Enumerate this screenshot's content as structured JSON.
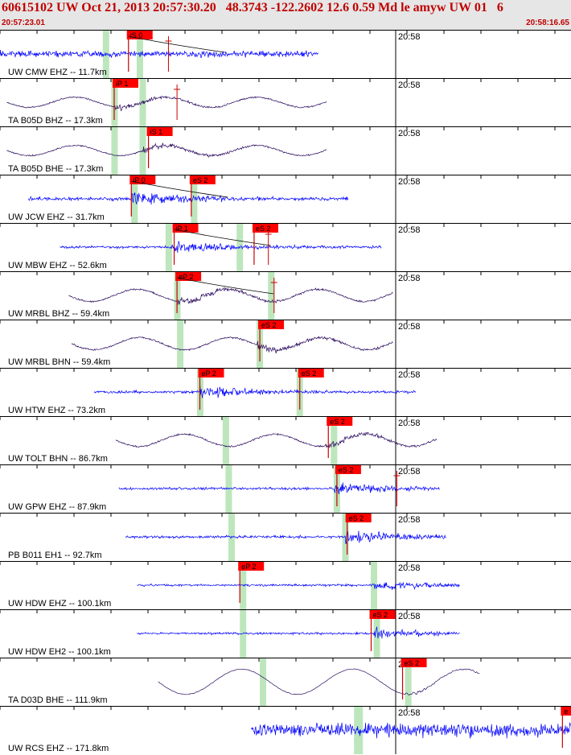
{
  "header": {
    "title": "60615102 UW Oct 21, 2013 20:57:30.20   48.3743 -122.2602 12.6 0.59 Md le amyw UW 01   6",
    "start_time": "20:57:23.01",
    "end_time": "20:58:16.65"
  },
  "tick_label": "20:58",
  "colors": {
    "blue_trace": "#0000ff",
    "dark_trace": "#2a0a5e",
    "pick_box": "#ff0000",
    "pick_line": "#cc0000",
    "window_band": "#bde6bd",
    "header_bg": "#e6e6e6",
    "header_text": "#c00000"
  },
  "traces": [
    {
      "label": "UW CMW EHZ -- 11.7km",
      "color": "blue",
      "start": 0.0,
      "end": 0.558,
      "amp": 0.35,
      "onset": 0.22,
      "kind": "noise",
      "green": [
        0.18,
        0.245
      ],
      "picks": [
        {
          "label": "iS 0",
          "t": 0.225
        }
      ],
      "marks": [
        0.295
      ],
      "arc": true
    },
    {
      "label": "TA B05D BHZ -- 17.3km",
      "color": "dark",
      "start": 0.012,
      "end": 0.572,
      "amp": 0.25,
      "onset": 0.2,
      "kind": "wave",
      "green": [
        0.195,
        0.25
      ],
      "picks": [
        {
          "label": "iP 1",
          "t": 0.2
        }
      ],
      "marks": [
        0.31
      ],
      "arc": false
    },
    {
      "label": "TA B05D BHE -- 17.3km",
      "color": "dark",
      "start": 0.012,
      "end": 0.572,
      "amp": 0.25,
      "onset": 0.25,
      "kind": "wave",
      "green": [
        0.195,
        0.25
      ],
      "picks": [
        {
          "label": "iS 1",
          "t": 0.26
        }
      ],
      "marks": [],
      "arc": false
    },
    {
      "label": "UW JCW EHZ -- 31.7km",
      "color": "blue",
      "start": 0.05,
      "end": 0.61,
      "amp": 0.6,
      "onset": 0.23,
      "kind": "burst",
      "green": [
        0.23,
        0.34
      ],
      "picks": [
        {
          "label": "iP 0",
          "t": 0.23
        },
        {
          "label": "eS 2",
          "t": 0.335
        }
      ],
      "marks": [],
      "arc": true
    },
    {
      "label": "UW MBW EHZ -- 52.6km",
      "color": "blue",
      "start": 0.105,
      "end": 0.668,
      "amp": 0.45,
      "onset": 0.3,
      "kind": "burst",
      "green": [
        0.29,
        0.42
      ],
      "picks": [
        {
          "label": "iP 1",
          "t": 0.305
        },
        {
          "label": "eS 2",
          "t": 0.445
        }
      ],
      "marks": [
        0.47
      ],
      "arc": true
    },
    {
      "label": "UW MRBL BHZ -- 59.4km",
      "color": "dark",
      "start": 0.12,
      "end": 0.688,
      "amp": 0.3,
      "onset": 0.31,
      "kind": "wave",
      "green": [
        0.305,
        0.475
      ],
      "picks": [
        {
          "label": "eP 2",
          "t": 0.31
        }
      ],
      "marks": [
        0.48
      ],
      "arc": true
    },
    {
      "label": "UW MRBL BHN -- 59.4km",
      "color": "dark",
      "start": 0.125,
      "end": 0.688,
      "amp": 0.3,
      "onset": 0.45,
      "kind": "wave",
      "green": [
        0.31,
        0.455
      ],
      "picks": [
        {
          "label": "eS 2",
          "t": 0.455
        }
      ],
      "marks": [],
      "arc": false
    },
    {
      "label": "UW HTW EHZ -- 73.2km",
      "color": "blue",
      "start": 0.165,
      "end": 0.728,
      "amp": 0.5,
      "onset": 0.35,
      "kind": "burst",
      "green": [
        0.345,
        0.525
      ],
      "picks": [
        {
          "label": "eP 2",
          "t": 0.35
        },
        {
          "label": "eS 2",
          "t": 0.525
        }
      ],
      "marks": [],
      "arc": false
    },
    {
      "label": "UW TOLT BHN -- 86.7km",
      "color": "dark",
      "start": 0.203,
      "end": 0.765,
      "amp": 0.3,
      "onset": 0.57,
      "kind": "wave",
      "green": [
        0.39,
        0.585
      ],
      "picks": [
        {
          "label": "eS 2",
          "t": 0.575
        }
      ],
      "marks": [],
      "arc": false
    },
    {
      "label": "UW GPW EHZ -- 87.9km",
      "color": "blue",
      "start": 0.208,
      "end": 0.77,
      "amp": 0.45,
      "onset": 0.585,
      "kind": "burst",
      "green": [
        0.395,
        0.59
      ],
      "picks": [
        {
          "label": "eS 2",
          "t": 0.59
        }
      ],
      "marks": [
        0.695
      ],
      "arc": false
    },
    {
      "label": "PB B011 EH1 -- 92.7km",
      "color": "blue",
      "start": 0.22,
      "end": 0.782,
      "amp": 0.5,
      "onset": 0.605,
      "kind": "burst",
      "green": [
        0.4,
        0.605
      ],
      "picks": [
        {
          "label": "eS 2",
          "t": 0.608
        }
      ],
      "marks": [],
      "arc": false
    },
    {
      "label": "UW HDW EHZ -- 100.1km",
      "color": "blue",
      "start": 0.24,
      "end": 0.805,
      "amp": 0.4,
      "onset": 0.655,
      "kind": "burst",
      "green": [
        0.42,
        0.655
      ],
      "picks": [
        {
          "label": "eP 2",
          "t": 0.42
        }
      ],
      "marks": [],
      "arc": false
    },
    {
      "label": "UW HDW EH2 -- 100.1km",
      "color": "blue",
      "start": 0.24,
      "end": 0.805,
      "amp": 0.4,
      "onset": 0.655,
      "kind": "burst",
      "green": [
        0.42,
        0.66
      ],
      "picks": [
        {
          "label": "eS 2",
          "t": 0.65
        }
      ],
      "marks": [],
      "arc": false
    },
    {
      "label": "TA D03D BHE -- 111.9km",
      "color": "dark",
      "start": 0.277,
      "end": 0.84,
      "amp": 0.7,
      "onset": 0.71,
      "kind": "slow",
      "green": [
        0.455,
        0.715
      ],
      "picks": [
        {
          "label": "eS 2",
          "t": 0.705
        }
      ],
      "marks": [],
      "arc": false
    },
    {
      "label": "UW RCS EHZ -- 171.8km",
      "color": "blue",
      "start": 0.44,
      "end": 1.0,
      "amp": 0.75,
      "onset": 0.44,
      "kind": "noise",
      "green": [
        0.62,
        0.63
      ],
      "picks": [
        {
          "label": "e",
          "t": 0.985
        }
      ],
      "marks": [],
      "arc": false
    }
  ]
}
